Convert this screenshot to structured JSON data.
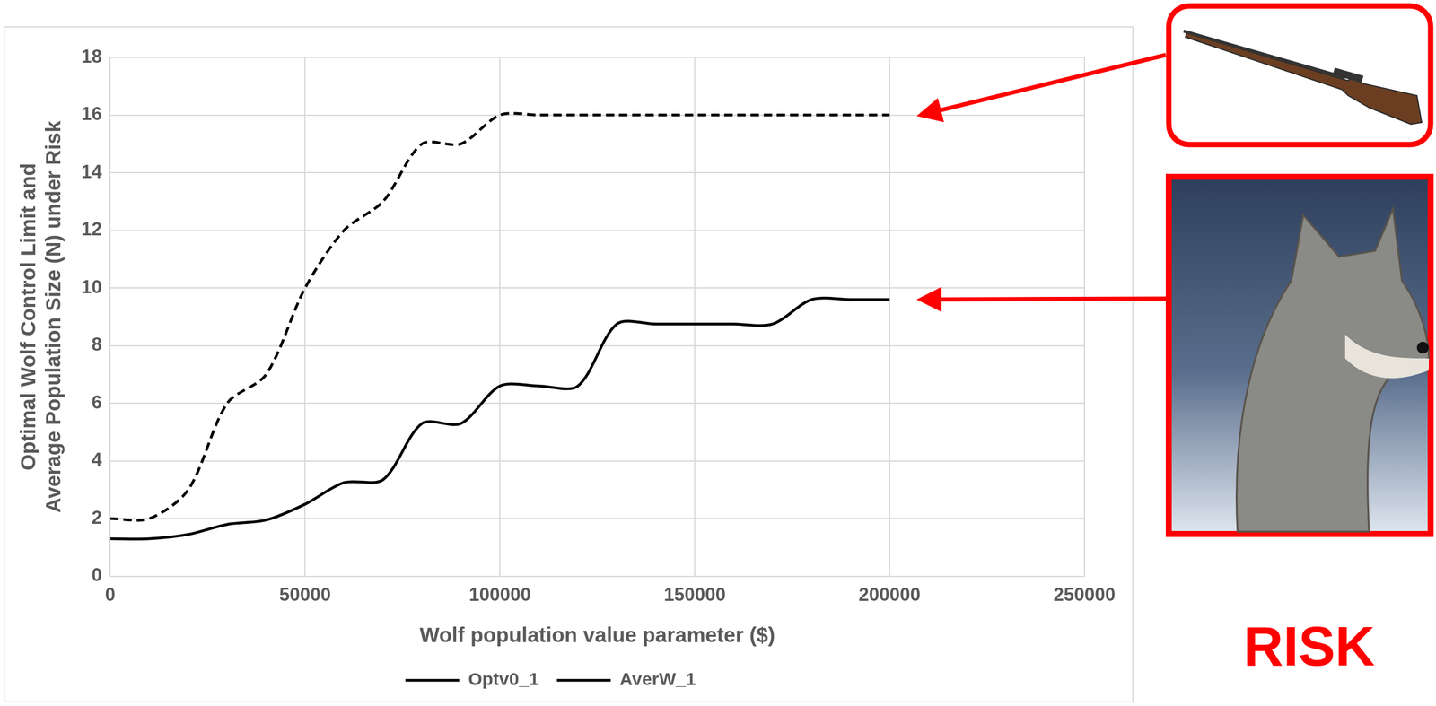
{
  "chart_data": {
    "type": "line",
    "x_label": "Wolf population value parameter ($)",
    "y_label": "Optimal Wolf Control Limit and Average Population Size (N) under Risk",
    "x": [
      0,
      10000,
      20000,
      30000,
      40000,
      50000,
      60000,
      70000,
      80000,
      90000,
      100000,
      110000,
      120000,
      130000,
      140000,
      150000,
      160000,
      170000,
      180000,
      190000,
      200000
    ],
    "series": [
      {
        "name": "Optv0_1",
        "color": "#000000",
        "line_style": "dashed",
        "marker": "none",
        "values": [
          2,
          2,
          3,
          6,
          7,
          10,
          12,
          13,
          15,
          15,
          16,
          16,
          16,
          16,
          16,
          16,
          16,
          16,
          16,
          16,
          16
        ]
      },
      {
        "name": "AverW_1",
        "color": "#000000",
        "line_style": "solid",
        "marker": "none",
        "values": [
          1.3,
          1.3,
          1.45,
          1.8,
          1.95,
          2.5,
          3.25,
          3.35,
          5.3,
          5.3,
          6.6,
          6.6,
          6.6,
          8.75,
          8.75,
          8.75,
          8.75,
          8.75,
          9.6,
          9.6,
          9.6
        ]
      }
    ],
    "xlim": [
      0,
      250000
    ],
    "xticks": [
      0,
      50000,
      100000,
      150000,
      200000,
      250000
    ],
    "ylim": [
      0,
      18
    ],
    "yticks": [
      0,
      2,
      4,
      6,
      8,
      10,
      12,
      14,
      16,
      18
    ],
    "grid": true,
    "legend": "bottom",
    "annotations": [
      "RISK"
    ]
  }
}
